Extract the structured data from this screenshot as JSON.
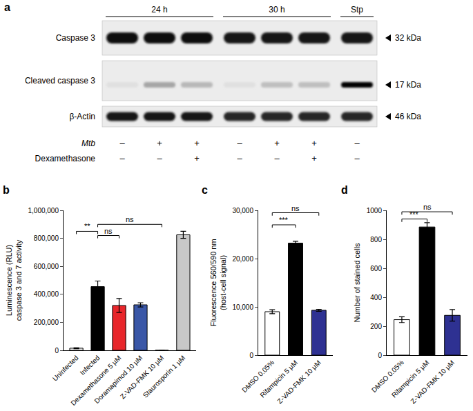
{
  "blot": {
    "panel": "a",
    "groups": [
      {
        "label": "24 h",
        "lanes": 3
      },
      {
        "label": "30 h",
        "lanes": 3
      },
      {
        "label": "Stp",
        "lanes": 1
      }
    ],
    "rows": [
      {
        "label": "Caspase 3",
        "size": "32 kDa",
        "intensities": [
          0.95,
          0.95,
          0.95,
          0.92,
          0.92,
          0.92,
          0.92
        ]
      },
      {
        "label": "Cleaved caspase 3",
        "size": "17 kDa",
        "intensities": [
          0.12,
          0.35,
          0.28,
          0.12,
          0.25,
          0.25,
          1.0
        ]
      },
      {
        "label": "β-Actin",
        "size": "46 kDa",
        "intensities": [
          0.9,
          0.9,
          0.9,
          0.85,
          0.85,
          0.85,
          0.85
        ]
      }
    ],
    "conditions": [
      {
        "label": "Mtb",
        "values": [
          "–",
          "+",
          "+",
          "–",
          "+",
          "+",
          "–"
        ]
      },
      {
        "label": "Dexamethasone",
        "values": [
          "–",
          "–",
          "+",
          "–",
          "–",
          "+",
          "–"
        ]
      }
    ]
  },
  "chart_data": [
    {
      "type": "bar",
      "panel": "b",
      "categories": [
        "Uninfected",
        "Infected",
        "Dexamethasone 5 µM",
        "Doramapimod 10 µM",
        "Z-VAD-FMK 10 µM",
        "Staurosporin 1 µM"
      ],
      "values": [
        15000,
        455000,
        320000,
        325000,
        0,
        825000
      ],
      "errors": [
        3000,
        40000,
        50000,
        15000,
        0,
        25000
      ],
      "colors": [
        "#ffffff",
        "#000000",
        "#e8262b",
        "#3a57a7",
        "#3a57a7",
        "#c8c8c8"
      ],
      "ylabel": "Luminescence (RLU)\ncaspase 3 and 7 activity",
      "ylim": [
        0,
        1000000
      ],
      "yticks": [
        0,
        {
          "value": 200000,
          "label": "200,000"
        },
        {
          "value": 400000,
          "label": "400,000"
        },
        {
          "value": 600000,
          "label": "600,000"
        },
        {
          "value": 800000,
          "label": "800,000"
        },
        {
          "value": 1000000,
          "label": "1,000,000"
        }
      ],
      "grid": false,
      "significance": [
        {
          "from": "Uninfected",
          "to": "Infected",
          "y": 850000,
          "label": "**"
        },
        {
          "from": "Infected",
          "to": "Dexamethasone 5 µM",
          "y": 820000,
          "label": "ns"
        },
        {
          "from": "Infected",
          "to": "Z-VAD-FMK 10 µM",
          "y": 900000,
          "label": "ns"
        }
      ]
    },
    {
      "type": "bar",
      "panel": "c",
      "categories": [
        "DMSO 0.05%",
        "Rifampicin 5 µM",
        "Z-VAD-FMK 10 µM"
      ],
      "values": [
        9000,
        23200,
        9300
      ],
      "errors": [
        400,
        400,
        200
      ],
      "colors": [
        "#ffffff",
        "#000000",
        "#2e3192"
      ],
      "ylabel": "Fluorescence 560/590 nm\n(host-cell signal)",
      "ylim": [
        0,
        30000
      ],
      "yticks": [
        0,
        {
          "value": 10000,
          "label": "10,000"
        },
        {
          "value": 20000,
          "label": "20,000"
        },
        {
          "value": 30000,
          "label": "30,000"
        }
      ],
      "grid": false,
      "significance": [
        {
          "from": "DMSO 0.05%",
          "to": "Rifampicin 5 µM",
          "y": 27000,
          "label": "***"
        },
        {
          "from": "DMSO 0.05%",
          "to": "Z-VAD-FMK 10 µM",
          "y": 29500,
          "label": "ns"
        }
      ]
    },
    {
      "type": "bar",
      "panel": "d",
      "categories": [
        "DMSO 0.05%",
        "Rifampicin 5 µM",
        "Z-VAD-FMK 10 µM"
      ],
      "values": [
        245,
        885,
        275
      ],
      "errors": [
        20,
        30,
        40
      ],
      "colors": [
        "#ffffff",
        "#000000",
        "#2e3192"
      ],
      "ylabel": "Number of stained cells",
      "ylim": [
        0,
        1000
      ],
      "yticks": [
        0,
        200,
        400,
        600,
        800,
        1000
      ],
      "grid": false,
      "significance": [
        {
          "from": "DMSO 0.05%",
          "to": "Rifampicin 5 µM",
          "y": 940,
          "label": "***"
        },
        {
          "from": "DMSO 0.05%",
          "to": "Z-VAD-FMK 10 µM",
          "y": 990,
          "label": "ns"
        }
      ]
    }
  ]
}
